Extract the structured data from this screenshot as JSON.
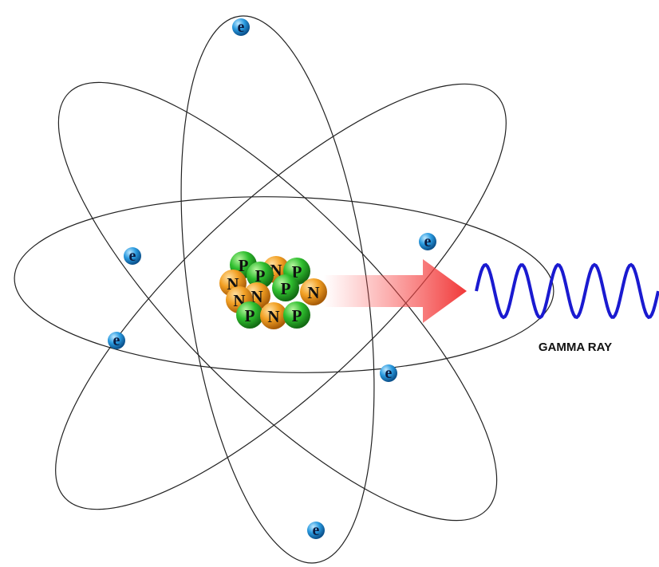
{
  "electrons": [
    {
      "label": "e"
    },
    {
      "label": "e"
    },
    {
      "label": "e"
    },
    {
      "label": "e"
    },
    {
      "label": "e"
    },
    {
      "label": "e"
    }
  ],
  "nucleons": [
    {
      "label": "P"
    },
    {
      "label": "N"
    },
    {
      "label": "P"
    },
    {
      "label": "P"
    },
    {
      "label": "N"
    },
    {
      "label": "N"
    },
    {
      "label": "P"
    },
    {
      "label": "N"
    },
    {
      "label": "N"
    },
    {
      "label": "P"
    },
    {
      "label": "N"
    },
    {
      "label": "P"
    }
  ],
  "gamma_ray": {
    "label": "GAMMA RAY"
  }
}
